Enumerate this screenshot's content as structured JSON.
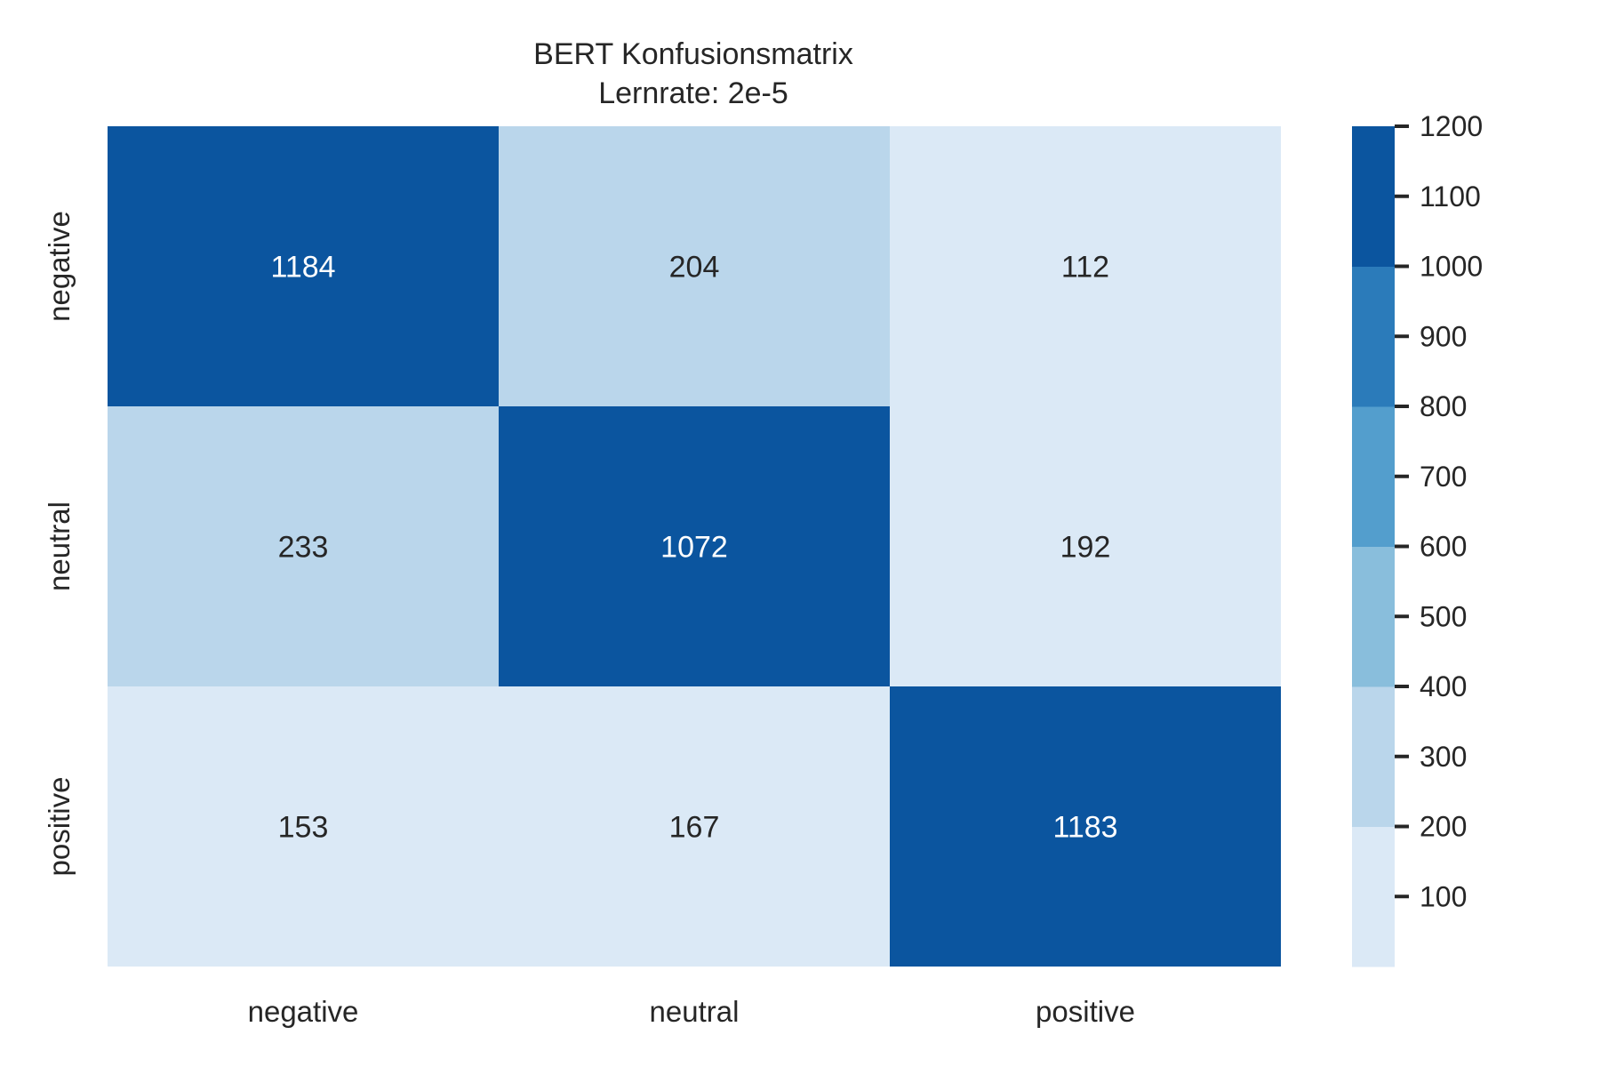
{
  "chart_data": {
    "type": "heatmap",
    "title": "BERT Konfusionsmatrix",
    "subtitle": "Lernrate: 2e-5",
    "x_categories": [
      "negative",
      "neutral",
      "positive"
    ],
    "y_categories": [
      "negative",
      "neutral",
      "positive"
    ],
    "values": [
      [
        1184,
        204,
        112
      ],
      [
        233,
        1072,
        192
      ],
      [
        153,
        167,
        1183
      ]
    ],
    "colorbar": {
      "range": [
        0,
        1200
      ],
      "ticks": [
        "100",
        "200",
        "300",
        "400",
        "500",
        "600",
        "700",
        "800",
        "900",
        "1000",
        "1100",
        "1200"
      ],
      "bands": [
        {
          "from": 0,
          "to": 200,
          "color": "#dbe9f6"
        },
        {
          "from": 200,
          "to": 400,
          "color": "#bad6eb"
        },
        {
          "from": 400,
          "to": 600,
          "color": "#89bedc"
        },
        {
          "from": 600,
          "to": 800,
          "color": "#539ecd"
        },
        {
          "from": 800,
          "to": 1000,
          "color": "#2b7bba"
        },
        {
          "from": 1000,
          "to": 1200,
          "color": "#0b559f"
        }
      ]
    },
    "colors": {
      "text_dark": "#262626",
      "text_light": "#ffffff",
      "tick_mark": "#262626"
    },
    "grid": false
  }
}
